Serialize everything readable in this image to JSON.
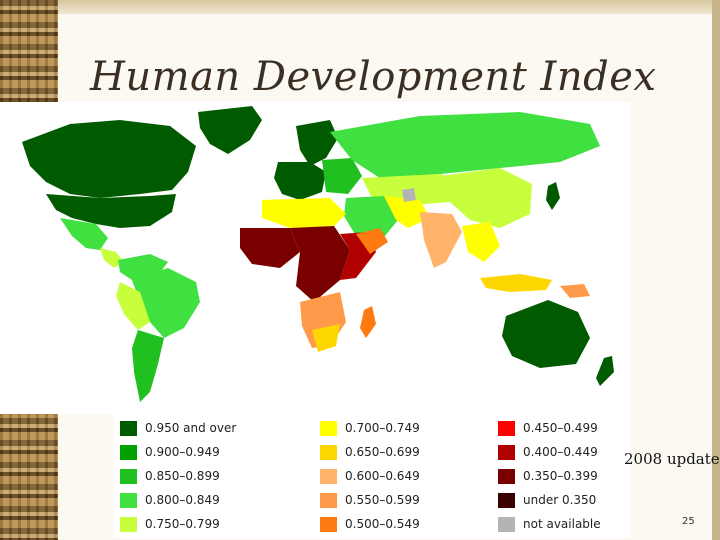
{
  "slide": {
    "title": "Human Development Index",
    "note": "2008 update",
    "page_number": "25"
  },
  "legend": {
    "columns": [
      [
        {
          "label": "0.950 and over",
          "color": "#005a00"
        },
        {
          "label": "0.900–0.949",
          "color": "#00a000"
        },
        {
          "label": "0.850–0.899",
          "color": "#20c020"
        },
        {
          "label": "0.800–0.849",
          "color": "#40e040"
        },
        {
          "label": "0.750–0.799",
          "color": "#c8ff3c"
        }
      ],
      [
        {
          "label": "0.700–0.749",
          "color": "#ffff00"
        },
        {
          "label": "0.650–0.699",
          "color": "#ffd700"
        },
        {
          "label": "0.600–0.649",
          "color": "#ffb36b"
        },
        {
          "label": "0.550–0.599",
          "color": "#ff9a4a"
        },
        {
          "label": "0.500–0.549",
          "color": "#ff7a10"
        }
      ],
      [
        {
          "label": "0.450–0.499",
          "color": "#ff0000"
        },
        {
          "label": "0.400–0.449",
          "color": "#b00000"
        },
        {
          "label": "0.350–0.399",
          "color": "#7a0000"
        },
        {
          "label": "under 0.350",
          "color": "#3a0000"
        },
        {
          "label": "not available",
          "color": "#b4b4b4"
        }
      ]
    ]
  },
  "map": {
    "colors": {
      "very_high": "#005a00",
      "high": "#20c020",
      "upper_mid": "#40e040",
      "mid": "#c8ff3c",
      "low_mid": "#ffff00",
      "orange": "#ffb36b",
      "dark_orange": "#ff7a10",
      "red": "#ff0000",
      "dark_red": "#7a0000",
      "na": "#b4b4b4"
    }
  }
}
